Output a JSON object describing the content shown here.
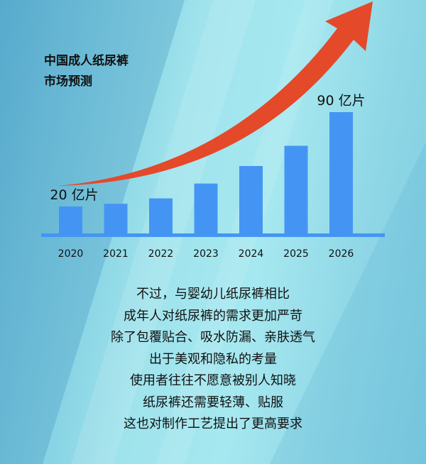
{
  "title_lines": [
    "中国成人纸尿裤",
    "市场预测"
  ],
  "chart_data": {
    "type": "bar",
    "title": "中国成人纸尿裤市场预测",
    "categories": [
      "2020",
      "2021",
      "2022",
      "2023",
      "2024",
      "2025",
      "2026"
    ],
    "values": [
      20,
      22,
      26,
      37,
      50,
      65,
      90
    ],
    "data_labels": {
      "0": "20 亿片",
      "6": "90 亿片"
    },
    "unit": "亿片",
    "grid": false,
    "colors": {
      "bar": "#4495f3",
      "arrow": "#e4492a",
      "axis": "#4495f3"
    }
  },
  "paragraph": [
    "不过，与婴幼儿纸尿裤相比",
    "成年人对纸尿裤的需求更加严苛",
    "除了包覆贴合、吸水防漏、亲肤透气",
    "出于美观和隐私的考量",
    "使用者往往不愿意被别人知晓",
    "纸尿裤还需要轻薄、贴服",
    "这也对制作工艺提出了更高要求"
  ]
}
